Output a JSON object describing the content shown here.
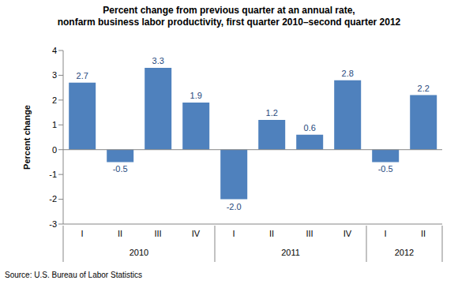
{
  "chart_data": {
    "type": "bar",
    "title": "Percent change from previous quarter at an annual rate,\nnonfarm business labor productivity, first quarter 2010–second quarter 2012",
    "y_label": "Percent change",
    "source": "Source: U.S. Bureau of Labor Statistics",
    "categories": [
      "I",
      "II",
      "III",
      "IV",
      "I",
      "II",
      "III",
      "IV",
      "I",
      "II"
    ],
    "groups": [
      "2010",
      "2010",
      "2010",
      "2010",
      "2011",
      "2011",
      "2011",
      "2011",
      "2012",
      "2012"
    ],
    "values": [
      2.7,
      -0.5,
      3.3,
      1.9,
      -2.0,
      1.2,
      0.6,
      2.8,
      -0.5,
      2.2
    ],
    "value_labels": [
      "2.7",
      "-0.5",
      "3.3",
      "1.9",
      "-2.0",
      "1.2",
      "0.6",
      "2.8",
      "-0.5",
      "2.2"
    ],
    "color": "#4F81BD",
    "ylim": [
      -3,
      4
    ],
    "yticks": [
      -3,
      -2,
      -1,
      0,
      1,
      2,
      3,
      4
    ],
    "grid": false,
    "data_labels": true
  }
}
